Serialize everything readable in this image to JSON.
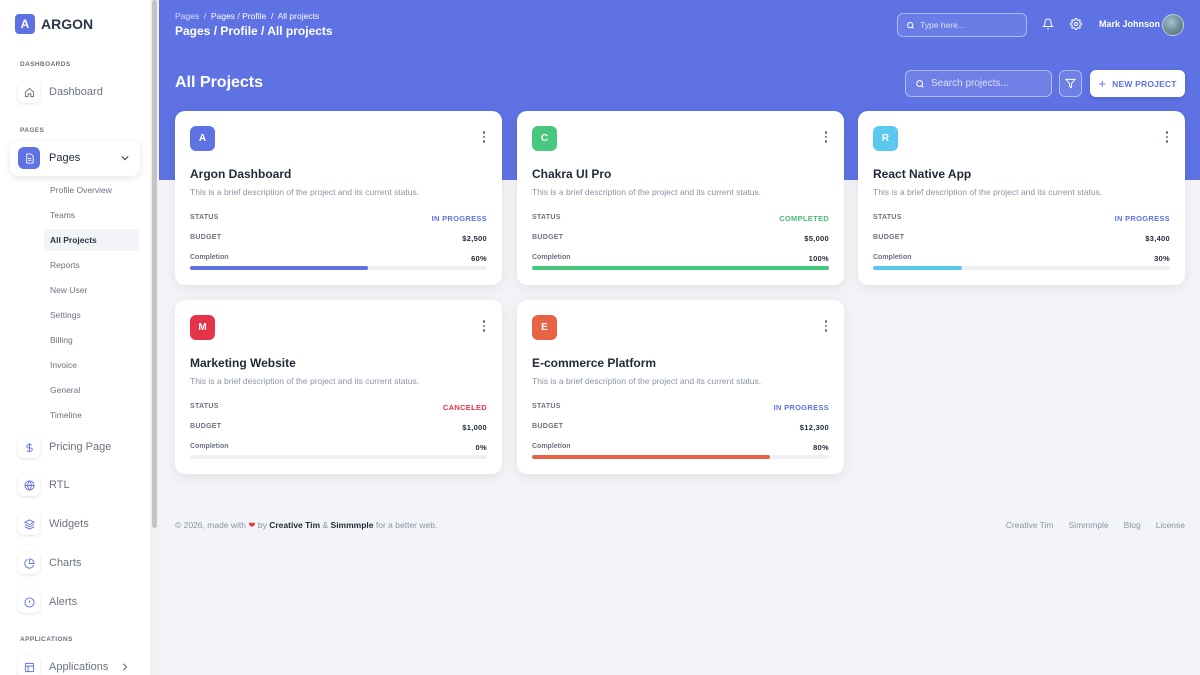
{
  "brand": {
    "logo_letter": "A",
    "name": "ARGON",
    "accent": "#5e72e4"
  },
  "sidebar": {
    "sections": {
      "dashboards": "DASHBOARDS",
      "pages": "PAGES",
      "applications": "APPLICATIONS"
    },
    "dashboard": {
      "label": "Dashboard",
      "icon": "home-icon"
    },
    "pages": {
      "label": "Pages",
      "icon": "document-icon",
      "expanded": true
    },
    "sub_items": [
      "Profile Overview",
      "Teams",
      "All Projects",
      "Reports",
      "New User",
      "Settings",
      "Billing",
      "Invoice",
      "General",
      "Timeline"
    ],
    "active_sub": "All Projects",
    "items": [
      {
        "label": "Pricing Page",
        "icon": "dollar-icon"
      },
      {
        "label": "RTL",
        "icon": "globe-icon"
      },
      {
        "label": "Widgets",
        "icon": "layers-icon"
      },
      {
        "label": "Charts",
        "icon": "pie-chart-icon"
      },
      {
        "label": "Alerts",
        "icon": "alert-icon"
      }
    ],
    "applications": {
      "label": "Applications",
      "icon": "table-icon"
    }
  },
  "header": {
    "breadcrumb": {
      "root": "Pages",
      "middle": "Pages / Profile",
      "current": "All projects"
    },
    "title": "Pages / Profile / All projects",
    "search_placeholder": "Type here...",
    "user_name": "Mark Johnson"
  },
  "main": {
    "title": "All Projects",
    "search_placeholder": "Search projects...",
    "new_button": "NEW PROJECT"
  },
  "labels": {
    "status": "STATUS",
    "budget": "BUDGET",
    "completion": "Completion"
  },
  "projects": [
    {
      "letter": "A",
      "name": "Argon Dashboard",
      "description": "This is a brief description of the project and its current status.",
      "status": "IN PROGRESS",
      "status_color": "#5e72e4",
      "budget": "$2,500",
      "completion": "60%",
      "progress": 60,
      "color": "#5e72e4"
    },
    {
      "letter": "C",
      "name": "Chakra UI Pro",
      "description": "This is a brief description of the project and its current status.",
      "status": "COMPLETED",
      "status_color": "#48bb78",
      "budget": "$5,000",
      "completion": "100%",
      "progress": 100,
      "color": "#48c77f"
    },
    {
      "letter": "R",
      "name": "React Native App",
      "description": "This is a brief description of the project and its current status.",
      "status": "IN PROGRESS",
      "status_color": "#5e72e4",
      "budget": "$3,400",
      "completion": "30%",
      "progress": 30,
      "color": "#5bc8ee"
    },
    {
      "letter": "M",
      "name": "Marketing Website",
      "description": "This is a brief description of the project and its current status.",
      "status": "CANCELED",
      "status_color": "#e5334a",
      "budget": "$1,000",
      "completion": "0%",
      "progress": 0,
      "color": "#e5334a"
    },
    {
      "letter": "E",
      "name": "E-commerce Platform",
      "description": "This is a brief description of the project and its current status.",
      "status": "IN PROGRESS",
      "status_color": "#5e72e4",
      "budget": "$12,300",
      "completion": "80%",
      "progress": 80,
      "color": "#e86245"
    }
  ],
  "footer": {
    "prefix": "© 2026, made with",
    "by": "by",
    "author": "Creative Tim",
    "amp": "&",
    "partner": "Simmmple",
    "suffix": "for a better web.",
    "links": [
      "Creative Tim",
      "Simmmple",
      "Blog",
      "License"
    ]
  }
}
